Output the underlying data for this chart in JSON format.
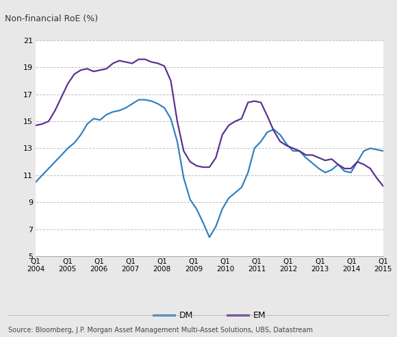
{
  "title": "Non-financial RoE (%)",
  "background_color": "#e8e8e8",
  "plot_background_color": "#ffffff",
  "ylim": [
    5,
    21
  ],
  "yticks": [
    5,
    7,
    9,
    11,
    13,
    15,
    17,
    19,
    21
  ],
  "source_text": "Source: Bloomberg, J.P. Morgan Asset Management Multi-Asset Solutions, UBS, Datastream",
  "dm_color": "#3080c0",
  "em_color": "#5a3090",
  "dm_label": "DM",
  "em_label": "EM",
  "x_labels": [
    "Q1\n2004",
    "Q1\n2005",
    "Q1\n2006",
    "Q1\n2007",
    "Q1\n2008",
    "Q1\n2009",
    "Q1\n2010",
    "Q1\n2011",
    "Q1\n2012",
    "Q1\n2013",
    "Q1\n2014",
    "Q1\n2015"
  ],
  "dm_data": [
    10.5,
    11.0,
    11.5,
    12.0,
    12.5,
    13.0,
    13.4,
    14.0,
    14.8,
    15.2,
    15.1,
    15.5,
    15.7,
    15.8,
    16.0,
    16.3,
    16.6,
    16.6,
    16.5,
    16.3,
    16.0,
    15.2,
    13.5,
    10.8,
    9.2,
    8.5,
    7.5,
    6.4,
    7.2,
    8.5,
    9.3,
    9.7,
    10.1,
    11.2,
    13.0,
    13.5,
    14.2,
    14.4,
    14.0,
    13.3,
    12.8,
    12.8,
    12.3,
    11.9,
    11.5,
    11.2,
    11.4,
    11.8,
    11.3,
    11.2,
    12.0,
    12.8,
    13.0,
    12.9,
    12.8
  ],
  "em_data": [
    14.7,
    14.8,
    15.0,
    15.8,
    16.8,
    17.8,
    18.5,
    18.8,
    18.9,
    18.7,
    18.8,
    18.9,
    19.3,
    19.5,
    19.4,
    19.3,
    19.6,
    19.6,
    19.4,
    19.3,
    19.1,
    18.0,
    15.0,
    12.8,
    12.0,
    11.7,
    11.6,
    11.6,
    12.3,
    14.0,
    14.7,
    15.0,
    15.2,
    16.4,
    16.5,
    16.4,
    15.4,
    14.3,
    13.5,
    13.2,
    13.0,
    12.8,
    12.5,
    12.5,
    12.3,
    12.1,
    12.2,
    11.8,
    11.5,
    11.5,
    12.0,
    11.8,
    11.5,
    10.8,
    10.2
  ]
}
